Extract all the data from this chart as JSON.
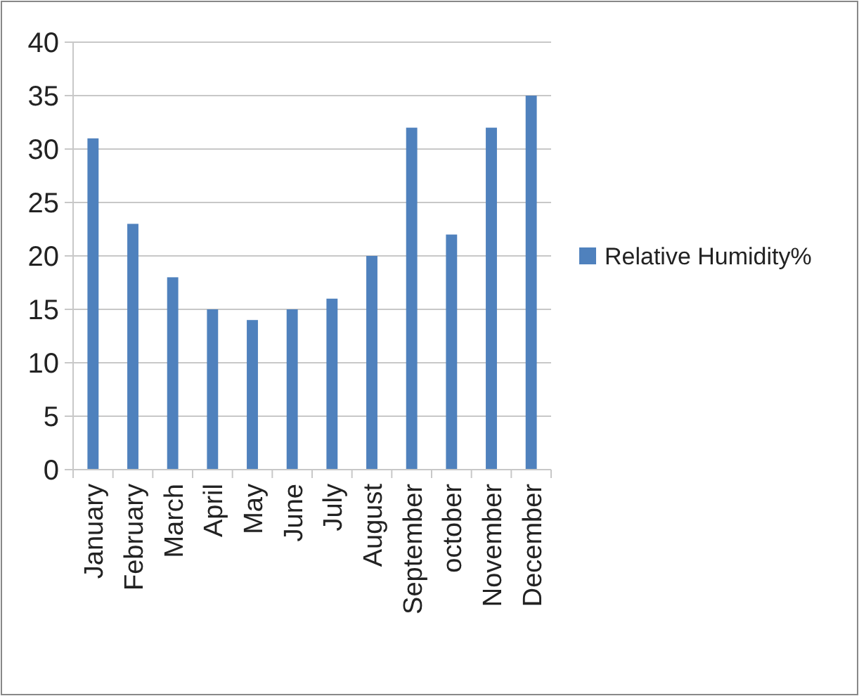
{
  "chart_data": {
    "type": "bar",
    "categories": [
      "January",
      "February",
      "March",
      "April",
      "May",
      "June",
      "July",
      "August",
      "September",
      "october",
      "November",
      "December"
    ],
    "series": [
      {
        "name": "Relative Humidity%",
        "color": "#4f81bd",
        "values": [
          31,
          23,
          18,
          15,
          14,
          15,
          16,
          20,
          32,
          22,
          32,
          35
        ]
      }
    ],
    "ylim": [
      0,
      40
    ],
    "yticks": [
      0,
      5,
      10,
      15,
      20,
      25,
      30,
      35,
      40
    ],
    "grid": "y",
    "legend": "right"
  }
}
